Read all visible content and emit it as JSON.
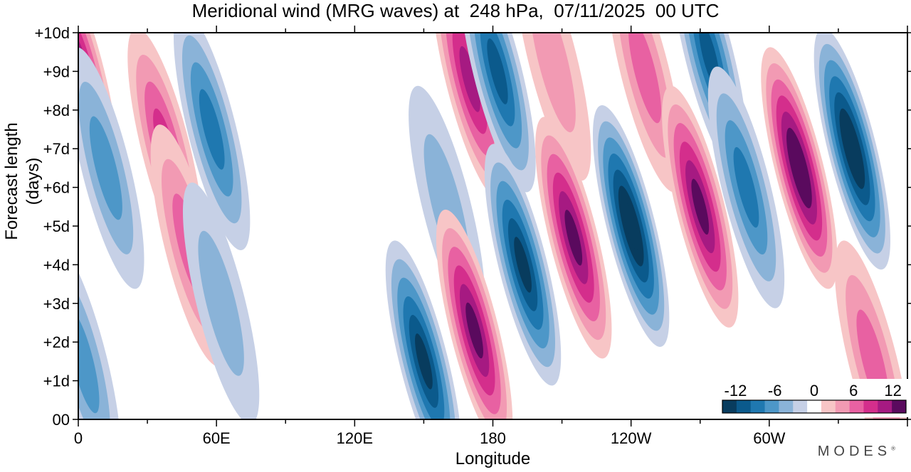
{
  "chart_data": {
    "type": "heatmap",
    "title": "Meridional wind (MRG waves) at  248 hPa,  07/11/2025  00 UTC",
    "xlabel": "Longitude",
    "ylabel": "Forecast length (days)",
    "x_ticks": [
      "0",
      "60E",
      "120E",
      "180",
      "120W",
      "60W"
    ],
    "x_tick_lon_east": [
      0,
      60,
      120,
      180,
      240,
      300
    ],
    "x_range_lon_east": [
      0,
      360
    ],
    "y_ticks": [
      "00",
      "+1d",
      "+2d",
      "+3d",
      "+4d",
      "+5d",
      "+6d",
      "+7d",
      "+8d",
      "+9d",
      "+10d"
    ],
    "y_range_days": [
      0,
      10
    ],
    "colorbar": {
      "tick_labels": [
        "-12",
        "-6",
        "0",
        "6",
        "12"
      ],
      "tick_values": [
        -12,
        -6,
        0,
        6,
        12
      ],
      "levels": [
        -14,
        -12,
        -10,
        -8,
        -6,
        -4,
        -2,
        2,
        4,
        6,
        8,
        10,
        12,
        14
      ],
      "colors": [
        "#083c5e",
        "#0b5a8c",
        "#1f78b0",
        "#4d97c8",
        "#8ab3d8",
        "#c6d0e6",
        "#ffffff",
        "#f7c5c6",
        "#f29ab3",
        "#e861a2",
        "#d42e8c",
        "#a61a82",
        "#5a0a5e"
      ]
    },
    "features": [
      {
        "lon": 1,
        "day": 8.9,
        "value": 13
      },
      {
        "lon": 2,
        "day": 1.5,
        "value": -6
      },
      {
        "lon": 12,
        "day": 6.5,
        "value": -6
      },
      {
        "lon": 38,
        "day": 7.0,
        "value": 9
      },
      {
        "lon": 48,
        "day": 4.5,
        "value": 6
      },
      {
        "lon": 58,
        "day": 7.5,
        "value": -8
      },
      {
        "lon": 62,
        "day": 3.0,
        "value": -5
      },
      {
        "lon": 150,
        "day": 1.5,
        "value": -12
      },
      {
        "lon": 160,
        "day": 5.5,
        "value": -4
      },
      {
        "lon": 170,
        "day": 8.8,
        "value": 10
      },
      {
        "lon": 172,
        "day": 2.3,
        "value": 12
      },
      {
        "lon": 182,
        "day": 9.0,
        "value": -11
      },
      {
        "lon": 193,
        "day": 4.0,
        "value": -13
      },
      {
        "lon": 206,
        "day": 9.3,
        "value": 5
      },
      {
        "lon": 215,
        "day": 4.7,
        "value": 13
      },
      {
        "lon": 240,
        "day": 5.0,
        "value": -14
      },
      {
        "lon": 246,
        "day": 9.0,
        "value": 7
      },
      {
        "lon": 270,
        "day": 5.5,
        "value": 13
      },
      {
        "lon": 274,
        "day": 9.4,
        "value": -11
      },
      {
        "lon": 290,
        "day": 6.0,
        "value": -8
      },
      {
        "lon": 313,
        "day": 6.5,
        "value": 14
      },
      {
        "lon": 336,
        "day": 7.0,
        "value": -14
      },
      {
        "lon": 345,
        "day": 1.5,
        "value": 6
      }
    ]
  },
  "brand": {
    "name": "MODES",
    "mark": "®"
  }
}
